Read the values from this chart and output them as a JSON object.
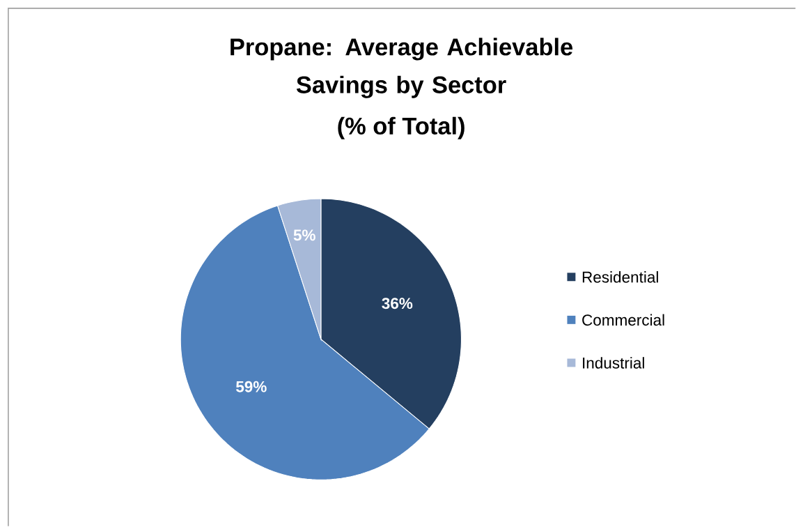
{
  "chart_data": {
    "type": "pie",
    "title": "Propane: Average Achievable Savings by Sector",
    "subtitle": "(% of Total)",
    "categories": [
      "Residential",
      "Commercial",
      "Industrial"
    ],
    "values": [
      36,
      59,
      5
    ],
    "colors": [
      "#243f60",
      "#4f81bd",
      "#a7b9d8"
    ],
    "value_labels": [
      "36%",
      "59%",
      "5%"
    ],
    "legend": "right"
  }
}
